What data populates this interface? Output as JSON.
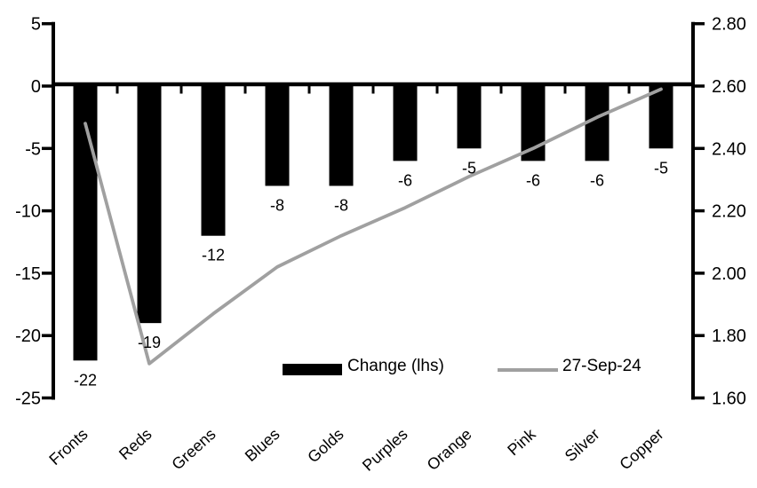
{
  "chart_data": {
    "type": "combo",
    "title": "",
    "xlabel": "",
    "ylabel_left": "",
    "ylabel_right": "",
    "grid": false,
    "background": "#ffffff",
    "categories": [
      "Fronts",
      "Reds",
      "Greens",
      "Blues",
      "Golds",
      "Purples",
      "Orange",
      "Pink",
      "Silver",
      "Copper"
    ],
    "series": [
      {
        "name": "Change (lhs)",
        "type": "bar",
        "axis": "left",
        "color": "#000000",
        "values": [
          -22,
          -19,
          -12,
          -8,
          -8,
          -6,
          -5,
          -6,
          -6,
          -5
        ],
        "data_labels": [
          "-22",
          "-19",
          "-12",
          "-8",
          "-8",
          "-6",
          "-5",
          "-6",
          "-6",
          "-5"
        ]
      },
      {
        "name": "27-Sep-24",
        "type": "line",
        "axis": "right",
        "color": "#a0a0a0",
        "values": [
          2.48,
          1.71,
          1.87,
          2.02,
          2.12,
          2.21,
          2.31,
          2.4,
          2.5,
          2.59
        ]
      }
    ],
    "left_axis": {
      "min": -25,
      "max": 5,
      "tick_values": [
        5,
        0,
        -5,
        -10,
        -15,
        -20,
        -25
      ],
      "tick_labels": [
        "5",
        "0",
        "-5",
        "-10",
        "-15",
        "-20",
        "-25"
      ]
    },
    "right_axis": {
      "min": 1.6,
      "max": 2.8,
      "tick_values": [
        2.8,
        2.6,
        2.4,
        2.2,
        2.0,
        1.8,
        1.6
      ],
      "tick_labels": [
        "2.80",
        "2.60",
        "2.40",
        "2.20",
        "2.00",
        "1.80",
        "1.60"
      ]
    },
    "legend": {
      "position": "bottom-inside",
      "entries": [
        {
          "label": "Change (lhs)",
          "swatch": "bar",
          "color": "#000000"
        },
        {
          "label": "27-Sep-24",
          "swatch": "line",
          "color": "#a0a0a0"
        }
      ]
    }
  }
}
